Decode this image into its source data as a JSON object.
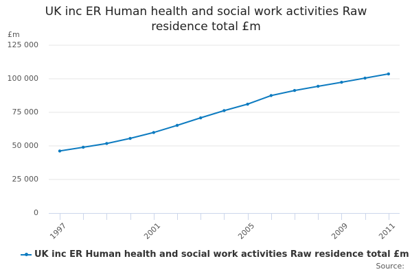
{
  "chart_data": {
    "type": "line",
    "title": "UK inc ER Human health and social work activities Raw residence total £m",
    "title_lines": [
      "UK inc ER Human health and social work activities Raw",
      "residence total £m"
    ],
    "xlabel": "",
    "ylabel": "£m",
    "ylim": [
      0,
      125000
    ],
    "yticks": [
      0,
      25000,
      50000,
      75000,
      100000,
      125000
    ],
    "ytick_labels": [
      "0",
      "25 000",
      "50 000",
      "75 000",
      "100 000",
      "125 000"
    ],
    "xticks_labeled": [
      "1997",
      "2001",
      "2005",
      "2009",
      "2011"
    ],
    "x": [
      "1997",
      "1998",
      "1999",
      "2000",
      "2001",
      "2002",
      "2003",
      "2004",
      "2005",
      "2006",
      "2007",
      "2008",
      "2009",
      "2010",
      "2011"
    ],
    "series": [
      {
        "name": "UK inc ER Human health and social work activities Raw residence total £m",
        "color": "#0d7bc0",
        "values": [
          46200,
          49000,
          51800,
          55600,
          60000,
          65300,
          70900,
          76300,
          81100,
          87500,
          91300,
          94400,
          97400,
          100500,
          103600
        ]
      }
    ],
    "grid": true,
    "legend_position": "bottom"
  },
  "header": {
    "title_line1": "UK inc ER Human health and social work activities Raw",
    "title_line2": "residence total £m",
    "unit_label": "£m"
  },
  "legend": {
    "label": "UK inc ER Human health and social work activities Raw residence total £m"
  },
  "footer": {
    "source_label": "Source:"
  }
}
